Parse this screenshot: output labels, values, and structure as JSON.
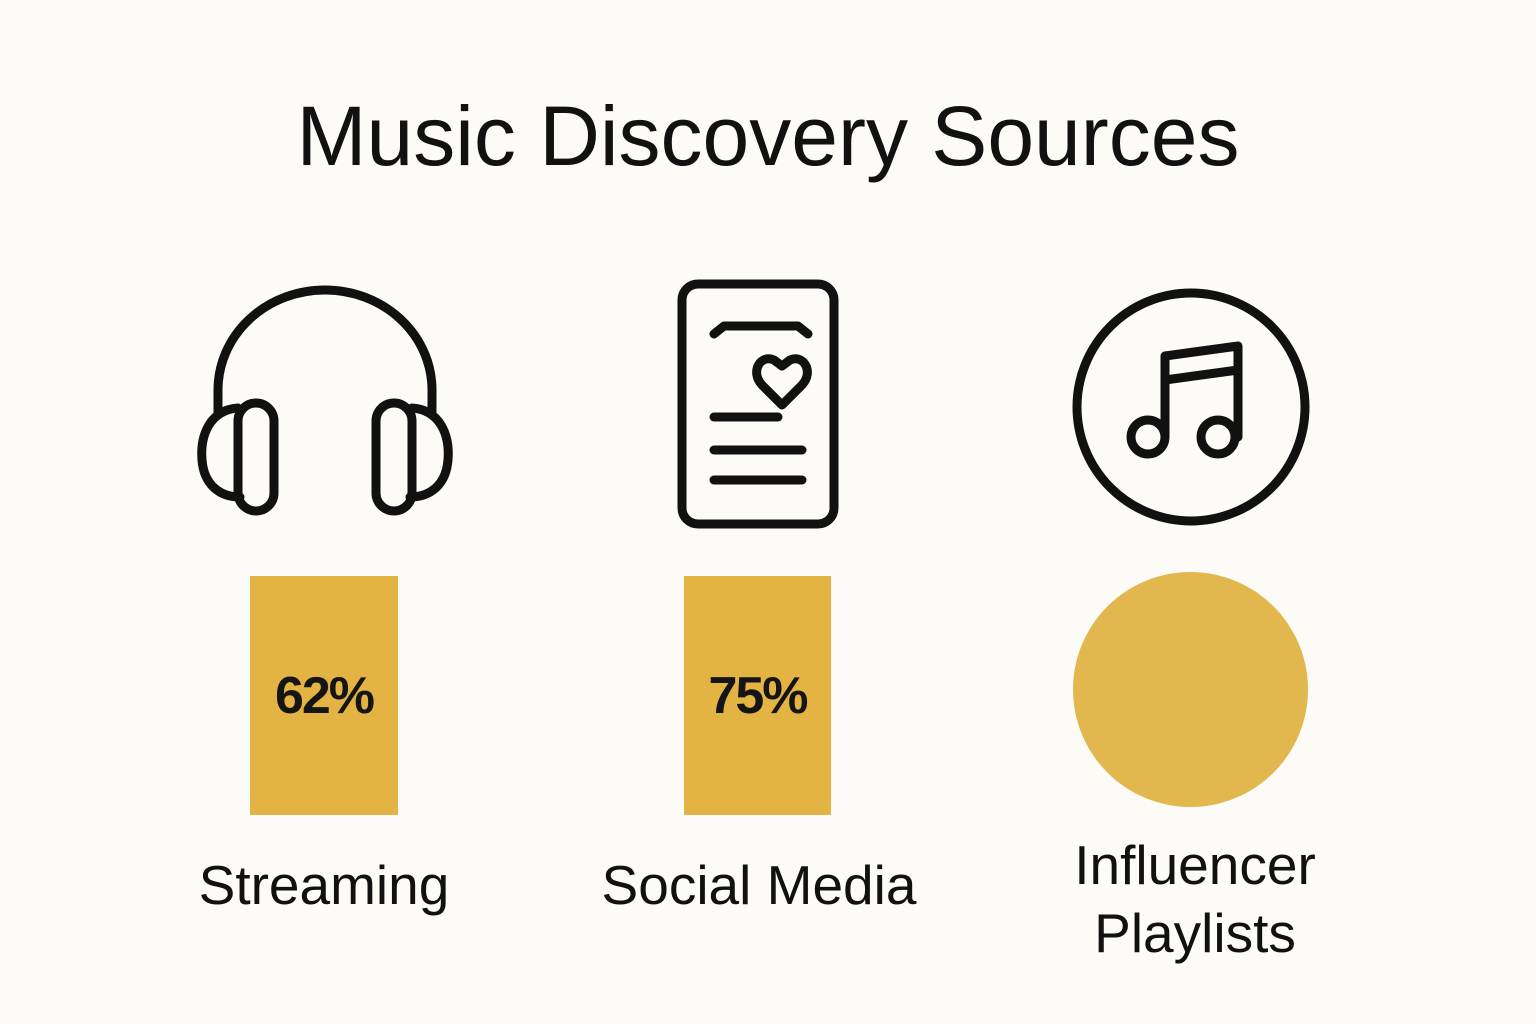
{
  "title": "Music Discovery Sources",
  "colors": {
    "background": "#fcfbf7",
    "accent": "#e3b443",
    "ink": "#111111"
  },
  "items": [
    {
      "label": "Streaming",
      "value_label": "62%",
      "icon": "headphones-icon",
      "marker": "bar"
    },
    {
      "label": "Social Media",
      "value_label": "75%",
      "icon": "phone-heart-icon",
      "marker": "bar"
    },
    {
      "label_line1": "Influencer",
      "label_line2": "Playlists",
      "icon": "music-note-icon",
      "marker": "circle"
    }
  ],
  "chart_data": {
    "type": "bar",
    "title": "Music Discovery Sources",
    "categories": [
      "Streaming",
      "Social Media",
      "Influencer Playlists"
    ],
    "values": [
      62,
      75,
      null
    ],
    "data_labels": [
      "62%",
      "75%",
      ""
    ],
    "unit": "%",
    "grid": false,
    "legend": "none"
  }
}
